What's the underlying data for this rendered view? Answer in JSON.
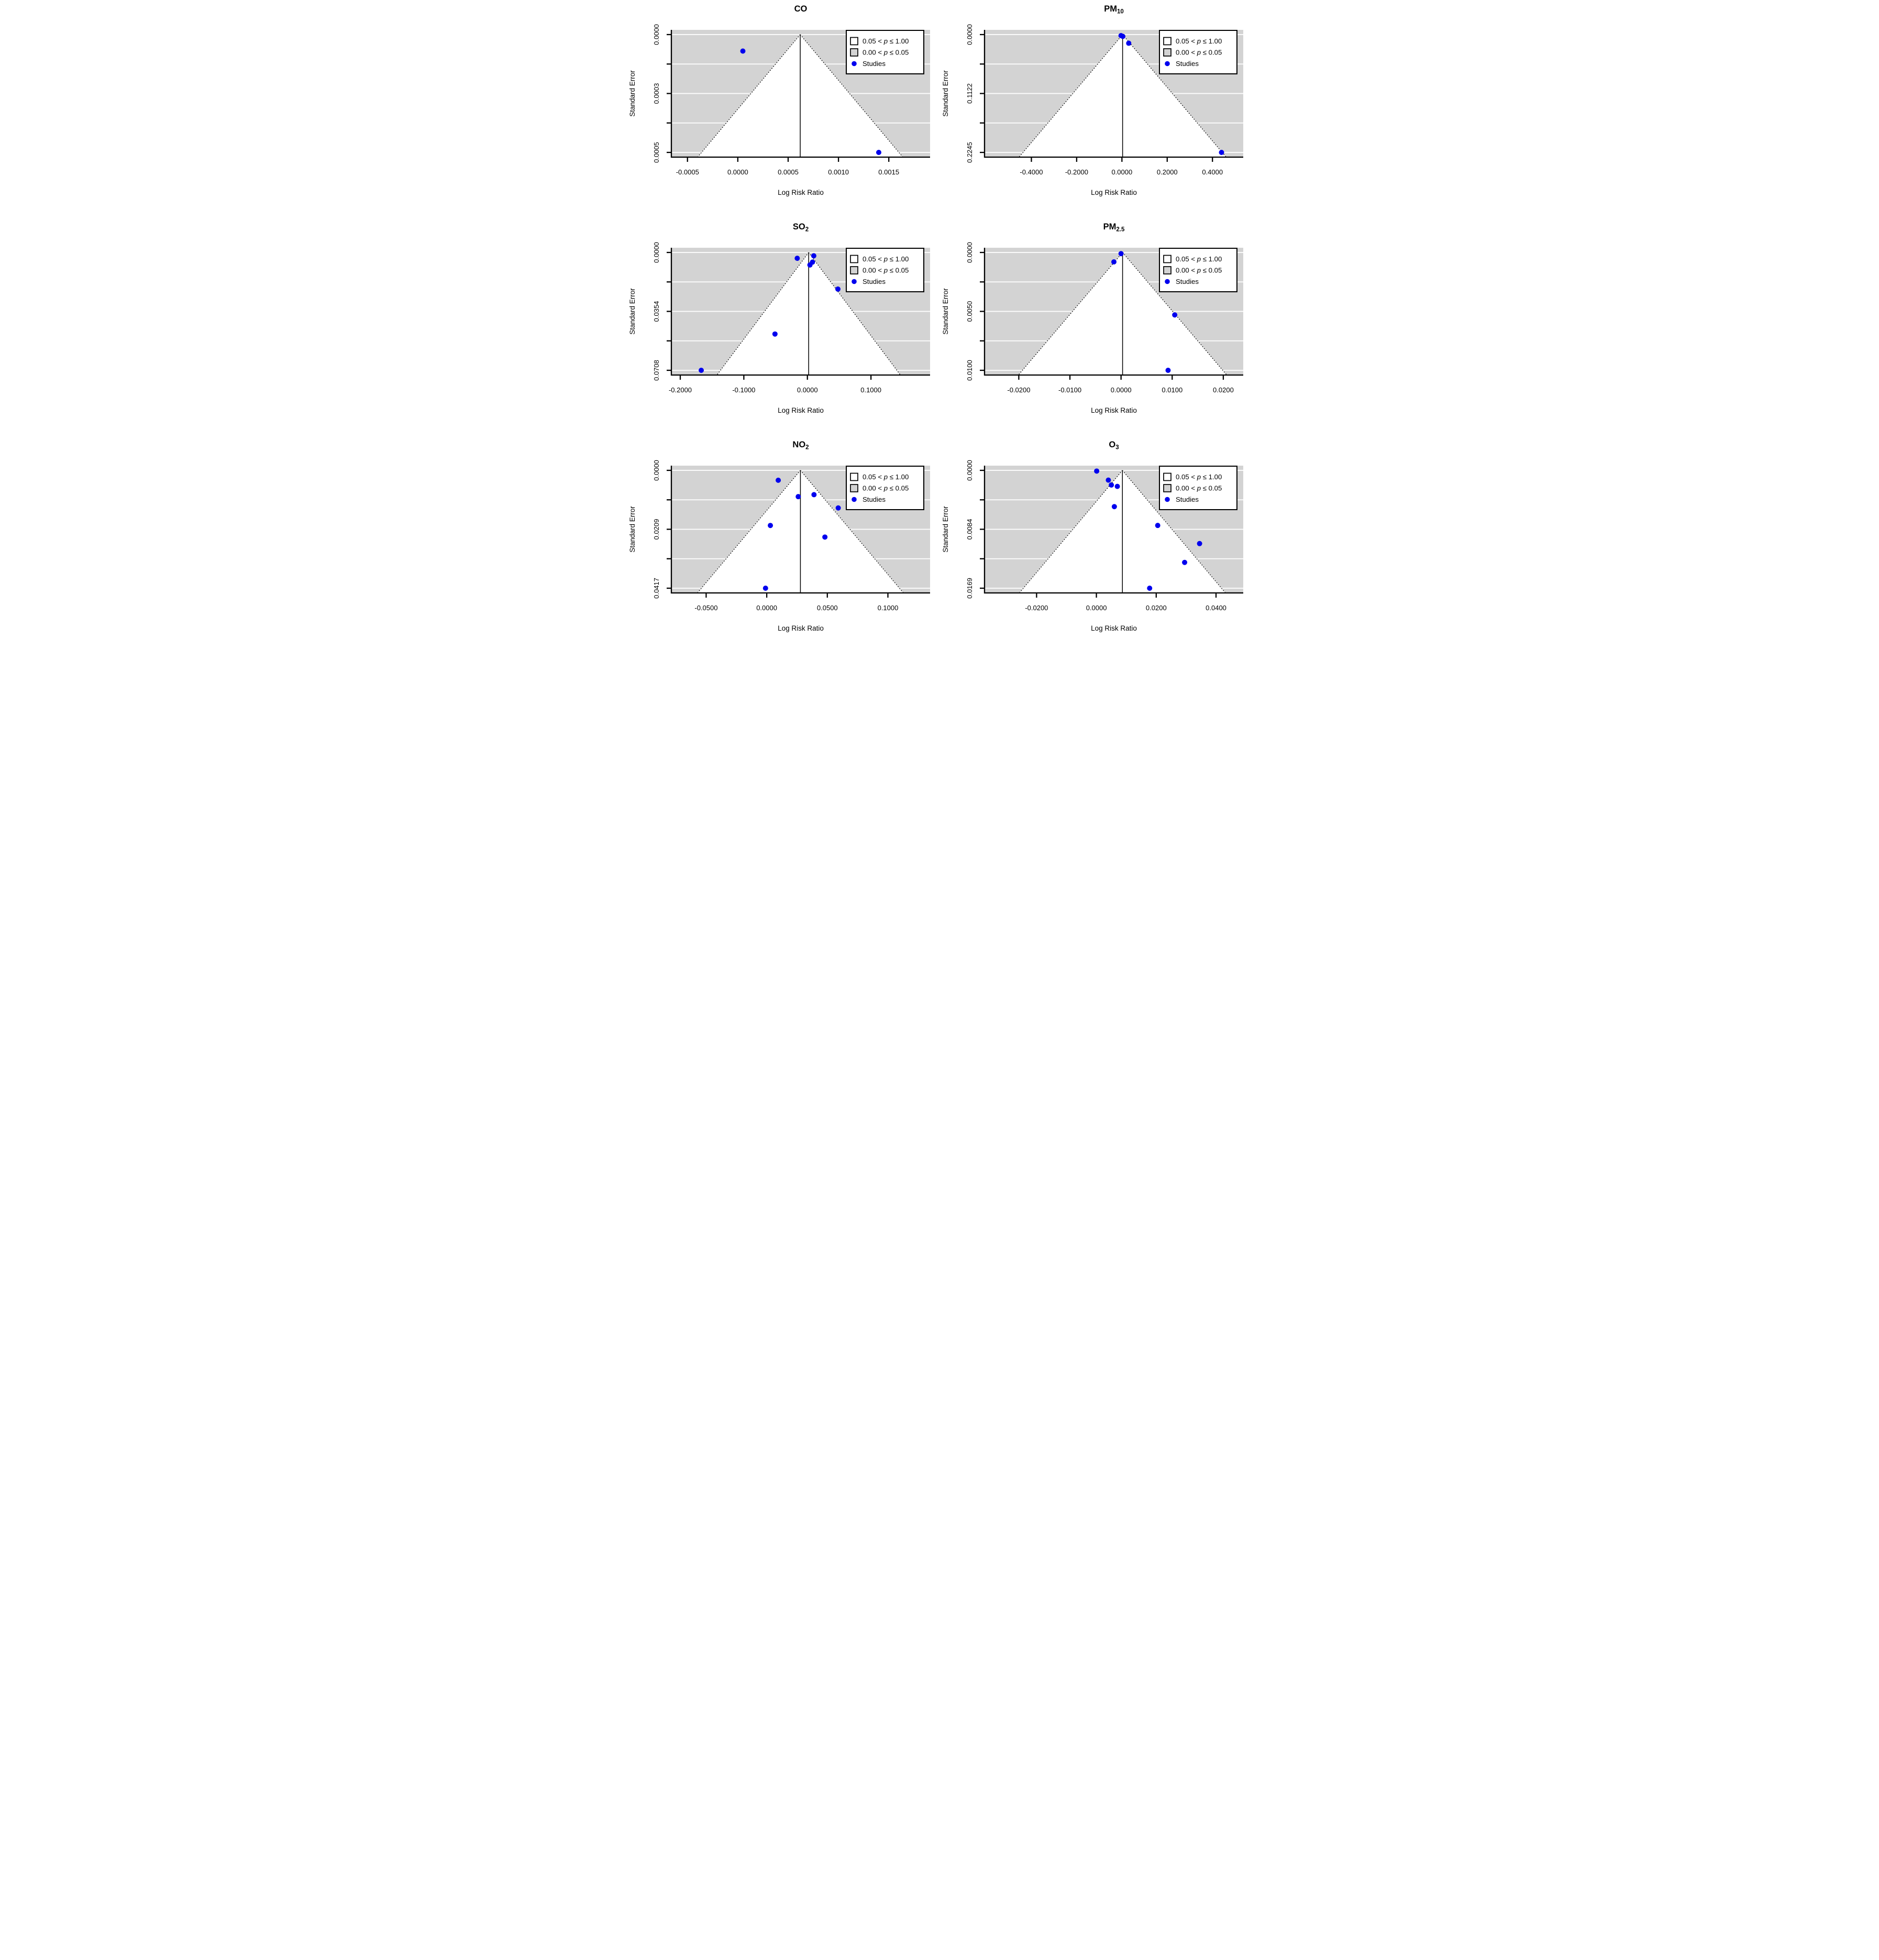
{
  "page": {
    "background": "#ffffff"
  },
  "colors": {
    "outside_shade": "#d3d3d3",
    "funnel_fill": "#ffffff",
    "gridline": "#ffffff",
    "point": "#0000ee",
    "axis": "#000000"
  },
  "axis_labels": {
    "x": "Log Risk Ratio",
    "y": "Standard Error"
  },
  "legend": {
    "items": [
      {
        "swatch": "open-square",
        "text_before": "0.05 < ",
        "text_italic": "p",
        "text_after": " ≤ 1.00"
      },
      {
        "swatch": "shaded-square",
        "text_before": "0.00 < ",
        "text_italic": "p",
        "text_after": " ≤ 0.05"
      },
      {
        "swatch": "blue-dot",
        "text_before": "Studies",
        "text_italic": "",
        "text_after": ""
      }
    ]
  },
  "chart_data": [
    {
      "type": "scatter",
      "subtype": "funnel-plot",
      "title": {
        "text": "CO",
        "sub": ""
      },
      "xlabel": "Log Risk Ratio",
      "ylabel": "Standard Error",
      "xlim": [
        -0.00066,
        0.00191
      ],
      "x_ticks": [
        {
          "v": -0.0005,
          "label": "-0.0005"
        },
        {
          "v": 0.0,
          "label": "0.0000"
        },
        {
          "v": 0.0005,
          "label": "0.0005"
        },
        {
          "v": 0.001,
          "label": "0.0010"
        },
        {
          "v": 0.0015,
          "label": "0.0015"
        }
      ],
      "y_axis": {
        "tick_max": 0.0005,
        "n_ticks": 5,
        "labels": [
          "0.0000",
          "0.0003",
          "0.0005"
        ]
      },
      "estimate": 0.00062,
      "ci_multiplier": 1.96,
      "points": [
        [
          5e-05,
          7e-05
        ],
        [
          0.0014,
          0.0005
        ]
      ]
    },
    {
      "type": "scatter",
      "subtype": "funnel-plot",
      "title": {
        "text": "PM",
        "sub": "10"
      },
      "xlabel": "Log Risk Ratio",
      "ylabel": "Standard Error",
      "xlim": [
        -0.607,
        0.536
      ],
      "x_ticks": [
        {
          "v": -0.4,
          "label": "-0.4000"
        },
        {
          "v": -0.2,
          "label": "-0.2000"
        },
        {
          "v": 0.0,
          "label": "0.0000"
        },
        {
          "v": 0.2,
          "label": "0.2000"
        },
        {
          "v": 0.4,
          "label": "0.4000"
        }
      ],
      "y_axis": {
        "tick_max": 0.2245,
        "n_ticks": 5,
        "labels": [
          "0.0000",
          "0.1122",
          "0.2245"
        ]
      },
      "estimate": 0.003,
      "ci_multiplier": 1.96,
      "points": [
        [
          -0.004,
          0.002
        ],
        [
          0.004,
          0.0035
        ],
        [
          0.03,
          0.0165
        ],
        [
          0.44,
          0.2245
        ]
      ]
    },
    {
      "type": "scatter",
      "subtype": "funnel-plot",
      "title": {
        "text": "SO",
        "sub": "2"
      },
      "xlabel": "Log Risk Ratio",
      "ylabel": "Standard Error",
      "xlim": [
        -0.214,
        0.193
      ],
      "x_ticks": [
        {
          "v": -0.2,
          "label": "-0.2000"
        },
        {
          "v": -0.1,
          "label": "-0.1000"
        },
        {
          "v": 0.0,
          "label": "0.0000"
        },
        {
          "v": 0.1,
          "label": "0.1000"
        }
      ],
      "y_axis": {
        "tick_max": 0.0708,
        "n_ticks": 5,
        "labels": [
          "0.0000",
          "0.0354",
          "0.0708"
        ]
      },
      "estimate": 0.002,
      "ci_multiplier": 1.96,
      "points": [
        [
          -0.016,
          0.0035
        ],
        [
          0.01,
          0.002
        ],
        [
          0.004,
          0.0075
        ],
        [
          0.008,
          0.0058
        ],
        [
          0.048,
          0.022
        ],
        [
          -0.051,
          0.049
        ],
        [
          -0.167,
          0.0708
        ]
      ]
    },
    {
      "type": "scatter",
      "subtype": "funnel-plot",
      "title": {
        "text": "PM",
        "sub": "2.5"
      },
      "xlabel": "Log Risk Ratio",
      "ylabel": "Standard Error",
      "xlim": [
        -0.0267,
        0.0239
      ],
      "x_ticks": [
        {
          "v": -0.02,
          "label": "-0.0200"
        },
        {
          "v": -0.01,
          "label": "-0.0100"
        },
        {
          "v": 0.0,
          "label": "0.0000"
        },
        {
          "v": 0.01,
          "label": "0.0100"
        },
        {
          "v": 0.02,
          "label": "0.0200"
        }
      ],
      "y_axis": {
        "tick_max": 0.01,
        "n_ticks": 5,
        "labels": [
          "0.0000",
          "0.0050",
          "0.0100"
        ]
      },
      "estimate": 0.0003,
      "ci_multiplier": 1.96,
      "points": [
        [
          0.0,
          0.0001
        ],
        [
          -0.0014,
          0.0008
        ],
        [
          0.0105,
          0.0053
        ],
        [
          0.0092,
          0.01
        ]
      ]
    },
    {
      "type": "scatter",
      "subtype": "funnel-plot",
      "title": {
        "text": "NO",
        "sub": "2"
      },
      "xlabel": "Log Risk Ratio",
      "ylabel": "Standard Error",
      "xlim": [
        -0.0787,
        0.1348
      ],
      "x_ticks": [
        {
          "v": -0.05,
          "label": "-0.0500"
        },
        {
          "v": 0.0,
          "label": "0.0000"
        },
        {
          "v": 0.05,
          "label": "0.0500"
        },
        {
          "v": 0.1,
          "label": "0.1000"
        }
      ],
      "y_axis": {
        "tick_max": 0.0417,
        "n_ticks": 5,
        "labels": [
          "0.0000",
          "0.0209",
          "0.0417"
        ]
      },
      "estimate": 0.0278,
      "ci_multiplier": 1.96,
      "points": [
        [
          0.0095,
          0.0035
        ],
        [
          0.026,
          0.0093
        ],
        [
          0.039,
          0.0086
        ],
        [
          0.059,
          0.0133
        ],
        [
          0.003,
          0.0195
        ],
        [
          0.048,
          0.0236
        ],
        [
          -0.001,
          0.0417
        ]
      ]
    },
    {
      "type": "scatter",
      "subtype": "funnel-plot",
      "title": {
        "text": "O",
        "sub": "3"
      },
      "xlabel": "Log Risk Ratio",
      "ylabel": "Standard Error",
      "xlim": [
        -0.0374,
        0.0491
      ],
      "x_ticks": [
        {
          "v": -0.02,
          "label": "-0.0200"
        },
        {
          "v": 0.0,
          "label": "0.0000"
        },
        {
          "v": 0.02,
          "label": "0.0200"
        },
        {
          "v": 0.04,
          "label": "0.0400"
        }
      ],
      "y_axis": {
        "tick_max": 0.0169,
        "n_ticks": 5,
        "labels": [
          "0.0000",
          "0.0084",
          "0.0169"
        ]
      },
      "estimate": 0.0087,
      "ci_multiplier": 1.96,
      "points": [
        [
          0.0001,
          0.0001
        ],
        [
          0.004,
          0.0014
        ],
        [
          0.005,
          0.0021
        ],
        [
          0.007,
          0.0023
        ],
        [
          0.006,
          0.0052
        ],
        [
          0.0205,
          0.0079
        ],
        [
          0.0345,
          0.0105
        ],
        [
          0.0295,
          0.0132
        ],
        [
          0.0178,
          0.0169
        ]
      ]
    }
  ]
}
